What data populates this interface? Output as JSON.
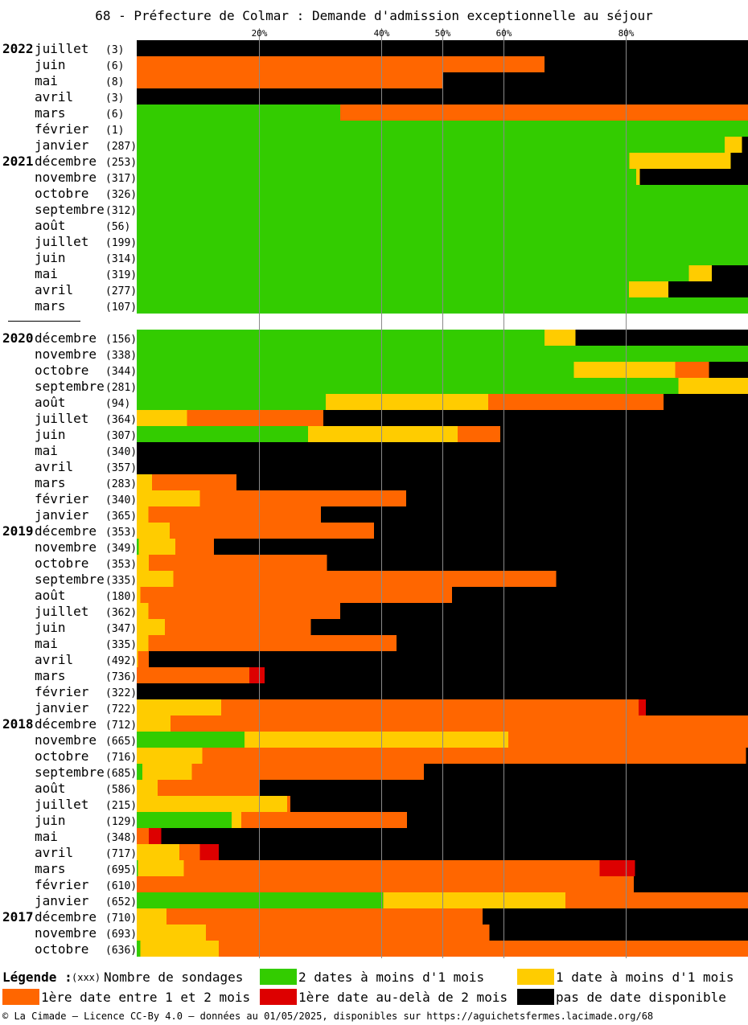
{
  "chart_data": {
    "type": "bar",
    "title": "68 - Préfecture de Colmar : Demande d'admission exceptionnelle au séjour",
    "x_ticks": [
      "20%",
      "40%",
      "50%",
      "60%",
      "80%"
    ],
    "xlim": [
      0,
      100
    ],
    "colors": {
      "green": "#33cc00",
      "yellow": "#ffcc00",
      "orange": "#ff6600",
      "red": "#dd0000",
      "black": "#000000"
    },
    "series_order": [
      "green",
      "yellow",
      "orange",
      "red",
      "black"
    ],
    "rows": [
      {
        "year": "2022",
        "month": "juillet",
        "count": "(3)",
        "values": [
          0,
          0,
          0,
          0,
          100
        ]
      },
      {
        "year": "",
        "month": "juin",
        "count": "(6)",
        "values": [
          0,
          0,
          66.7,
          0,
          33.3
        ]
      },
      {
        "year": "",
        "month": "mai",
        "count": "(8)",
        "values": [
          0,
          0,
          50,
          0,
          50
        ]
      },
      {
        "year": "",
        "month": "avril",
        "count": "(3)",
        "values": [
          0,
          0,
          0,
          0,
          100
        ]
      },
      {
        "year": "",
        "month": "mars",
        "count": "(6)",
        "values": [
          33.3,
          0,
          66.7,
          0,
          0
        ]
      },
      {
        "year": "",
        "month": "février",
        "count": "(1)",
        "values": [
          100,
          0,
          0,
          0,
          0
        ]
      },
      {
        "year": "",
        "month": "janvier",
        "count": "(287)",
        "values": [
          96.2,
          2.8,
          0,
          0,
          1
        ]
      },
      {
        "year": "2021",
        "month": "décembre",
        "count": "(253)",
        "values": [
          80.6,
          16.6,
          0,
          0,
          2.8
        ]
      },
      {
        "year": "",
        "month": "novembre",
        "count": "(317)",
        "values": [
          81.7,
          0.6,
          0,
          0,
          17.7
        ]
      },
      {
        "year": "",
        "month": "octobre",
        "count": "(326)",
        "values": [
          100,
          0,
          0,
          0,
          0
        ]
      },
      {
        "year": "",
        "month": "septembre",
        "count": "(312)",
        "values": [
          100,
          0,
          0,
          0,
          0
        ]
      },
      {
        "year": "",
        "month": "août",
        "count": "(56)",
        "values": [
          100,
          0,
          0,
          0,
          0
        ]
      },
      {
        "year": "",
        "month": "juillet",
        "count": "(199)",
        "values": [
          100,
          0,
          0,
          0,
          0
        ]
      },
      {
        "year": "",
        "month": "juin",
        "count": "(314)",
        "values": [
          100,
          0,
          0,
          0,
          0
        ]
      },
      {
        "year": "",
        "month": "mai",
        "count": "(319)",
        "values": [
          90.3,
          3.8,
          0,
          0,
          5.9
        ]
      },
      {
        "year": "",
        "month": "avril",
        "count": "(277)",
        "values": [
          80.5,
          6.5,
          0,
          0,
          13
        ]
      },
      {
        "year": "",
        "month": "mars",
        "count": "(107)",
        "values": [
          100,
          0,
          0,
          0,
          0
        ],
        "section_break_after": true
      },
      {
        "year": "2020",
        "month": "décembre",
        "count": "(156)",
        "values": [
          66.7,
          5.1,
          0,
          0,
          28.2
        ]
      },
      {
        "year": "",
        "month": "novembre",
        "count": "(338)",
        "values": [
          100,
          0,
          0,
          0,
          0
        ]
      },
      {
        "year": "",
        "month": "octobre",
        "count": "(344)",
        "values": [
          71.5,
          16.6,
          5.5,
          0,
          6.4
        ]
      },
      {
        "year": "",
        "month": "septembre",
        "count": "(281)",
        "values": [
          88.6,
          11.4,
          0,
          0,
          0
        ]
      },
      {
        "year": "",
        "month": "août",
        "count": "(94)",
        "values": [
          30.9,
          26.6,
          28.7,
          0,
          13.8
        ]
      },
      {
        "year": "",
        "month": "juillet",
        "count": "(364)",
        "values": [
          0,
          8.2,
          22.3,
          0,
          69.5
        ]
      },
      {
        "year": "",
        "month": "juin",
        "count": "(307)",
        "values": [
          28,
          24.5,
          7,
          0,
          40.5
        ]
      },
      {
        "year": "",
        "month": "mai",
        "count": "(340)",
        "values": [
          0,
          0,
          0,
          0,
          100
        ]
      },
      {
        "year": "",
        "month": "avril",
        "count": "(357)",
        "values": [
          0,
          0,
          0,
          0,
          100
        ]
      },
      {
        "year": "",
        "month": "mars",
        "count": "(283)",
        "values": [
          0,
          2.5,
          13.8,
          0,
          83.7
        ]
      },
      {
        "year": "",
        "month": "février",
        "count": "(340)",
        "values": [
          0,
          10.3,
          33.8,
          0,
          55.9
        ]
      },
      {
        "year": "",
        "month": "janvier",
        "count": "(365)",
        "values": [
          0,
          1.9,
          28.2,
          0,
          69.9
        ]
      },
      {
        "year": "2019",
        "month": "décembre",
        "count": "(353)",
        "values": [
          0,
          5.4,
          33.4,
          0,
          61.2
        ]
      },
      {
        "year": "",
        "month": "novembre",
        "count": "(349)",
        "values": [
          0.3,
          6,
          6.3,
          0,
          87.4
        ]
      },
      {
        "year": "",
        "month": "octobre",
        "count": "(353)",
        "values": [
          0,
          2,
          29.1,
          0,
          68.9
        ]
      },
      {
        "year": "",
        "month": "septembre",
        "count": "(335)",
        "values": [
          0,
          6,
          62.6,
          0,
          31.4
        ]
      },
      {
        "year": "",
        "month": "août",
        "count": "(180)",
        "values": [
          0,
          0.6,
          51,
          0,
          48.4
        ]
      },
      {
        "year": "",
        "month": "juillet",
        "count": "(362)",
        "values": [
          0,
          1.9,
          31.4,
          0,
          66.7
        ]
      },
      {
        "year": "",
        "month": "juin",
        "count": "(347)",
        "values": [
          0,
          4.6,
          23.9,
          0,
          71.5
        ]
      },
      {
        "year": "",
        "month": "mai",
        "count": "(335)",
        "values": [
          0,
          1.9,
          40.6,
          0,
          57.5
        ]
      },
      {
        "year": "",
        "month": "avril",
        "count": "(492)",
        "values": [
          0,
          0.2,
          1.8,
          0,
          98
        ]
      },
      {
        "year": "",
        "month": "mars",
        "count": "(736)",
        "values": [
          0,
          0,
          18.4,
          2.5,
          79.1
        ]
      },
      {
        "year": "",
        "month": "février",
        "count": "(322)",
        "values": [
          0,
          0,
          0,
          0,
          100
        ]
      },
      {
        "year": "",
        "month": "janvier",
        "count": "(722)",
        "values": [
          0,
          13.8,
          68.3,
          1.2,
          16.7
        ]
      },
      {
        "year": "2018",
        "month": "décembre",
        "count": "(712)",
        "values": [
          0,
          5.5,
          94.5,
          0,
          0
        ]
      },
      {
        "year": "",
        "month": "novembre",
        "count": "(665)",
        "values": [
          17.6,
          43.2,
          39.2,
          0,
          0
        ]
      },
      {
        "year": "",
        "month": "octobre",
        "count": "(716)",
        "values": [
          0,
          10.7,
          89,
          0,
          0.3
        ]
      },
      {
        "year": "",
        "month": "septembre",
        "count": "(685)",
        "values": [
          0.9,
          8.1,
          38,
          0,
          53
        ]
      },
      {
        "year": "",
        "month": "août",
        "count": "(586)",
        "values": [
          0,
          3.4,
          16.6,
          0,
          80
        ]
      },
      {
        "year": "",
        "month": "juillet",
        "count": "(215)",
        "values": [
          0,
          24.6,
          0.5,
          0,
          74.9
        ]
      },
      {
        "year": "",
        "month": "juin",
        "count": "(129)",
        "values": [
          15.5,
          1.6,
          27.1,
          0,
          55.8
        ]
      },
      {
        "year": "",
        "month": "mai",
        "count": "(348)",
        "values": [
          0,
          0,
          2,
          2,
          96
        ]
      },
      {
        "year": "",
        "month": "avril",
        "count": "(717)",
        "values": [
          0,
          7,
          3.3,
          3.1,
          86.6
        ]
      },
      {
        "year": "",
        "month": "mars",
        "count": "(695)",
        "values": [
          0.2,
          7.5,
          68,
          5.8,
          18.5
        ]
      },
      {
        "year": "",
        "month": "février",
        "count": "(610)",
        "values": [
          0,
          0,
          81.3,
          0,
          18.7
        ]
      },
      {
        "year": "",
        "month": "janvier",
        "count": "(652)",
        "values": [
          40.3,
          29.8,
          29.9,
          0,
          0
        ]
      },
      {
        "year": "2017",
        "month": "décembre",
        "count": "(710)",
        "values": [
          0,
          4.9,
          51.7,
          0,
          43.4
        ]
      },
      {
        "year": "",
        "month": "novembre",
        "count": "(693)",
        "values": [
          0,
          11.3,
          46.4,
          0,
          42.3
        ]
      },
      {
        "year": "",
        "month": "octobre",
        "count": "(636)",
        "values": [
          0.6,
          12.8,
          86.6,
          0,
          0
        ]
      }
    ]
  },
  "legend": {
    "title": "Légende :",
    "count_hint": "(xxx)",
    "count_label": "Nombre de sondages",
    "items": [
      {
        "key": "green",
        "label": "2 dates à moins d'1 mois"
      },
      {
        "key": "yellow",
        "label": "1 date à moins d'1 mois"
      },
      {
        "key": "orange",
        "label": "1ère date entre 1 et 2 mois"
      },
      {
        "key": "red",
        "label": "1ère date au-delà de 2 mois"
      },
      {
        "key": "black",
        "label": "pas de date disponible"
      }
    ]
  },
  "footer": "© La Cimade — Licence CC-By 4.0 — données au 01/05/2025, disponibles sur https://aguichetsfermes.lacimade.org/68"
}
